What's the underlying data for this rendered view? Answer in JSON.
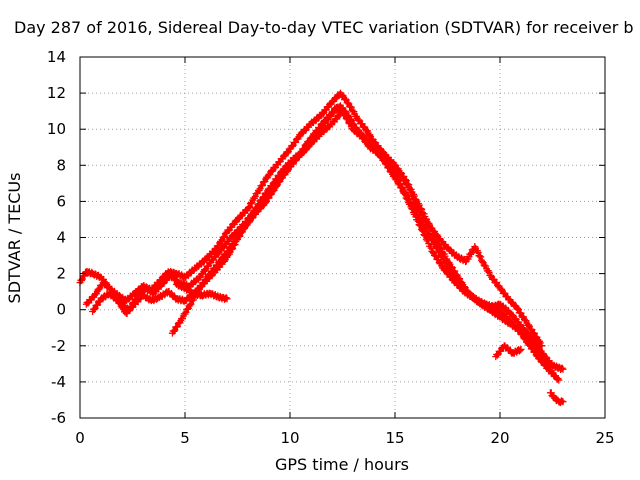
{
  "chart_data": {
    "type": "scatter",
    "title": "Day 287 of 2016, Sidereal Day-to-day VTEC variation (SDTVAR) for receiver b",
    "xlabel": "GPS time / hours",
    "ylabel": "SDTVAR / TECUs",
    "xlim": [
      0,
      25
    ],
    "ylim": [
      -6,
      14
    ],
    "xticks": [
      "0",
      "5",
      "10",
      "15",
      "20",
      "25"
    ],
    "yticks": [
      "-6",
      "-4",
      "-2",
      "0",
      "2",
      "4",
      "6",
      "8",
      "10",
      "12",
      "14"
    ],
    "grid": true,
    "marker": "plus",
    "color": "#ff0000",
    "series": [
      {
        "x": [
          0.0,
          0.3,
          0.6,
          1.0,
          1.4,
          1.8,
          2.2,
          2.6,
          3.0,
          3.4,
          3.8,
          4.2,
          4.6,
          5.0,
          5.5,
          6.0,
          6.5,
          7.0,
          7.5,
          8.0,
          8.5,
          9.0,
          9.5,
          10.0,
          10.5,
          11.0,
          11.5,
          12.0,
          12.4,
          12.8,
          13.2,
          13.6,
          14.0,
          14.5,
          15.0,
          15.5,
          16.0,
          16.5,
          17.0,
          17.5,
          18.0,
          18.5,
          19.0,
          19.5,
          20.0,
          20.5,
          21.0,
          21.5,
          22.0,
          22.5,
          23.0
        ],
        "y": [
          1.5,
          2.1,
          2.0,
          1.8,
          1.2,
          0.8,
          0.5,
          0.9,
          1.3,
          1.1,
          1.6,
          2.1,
          2.0,
          1.8,
          2.3,
          2.8,
          3.4,
          4.3,
          5.0,
          5.6,
          6.6,
          7.5,
          8.2,
          8.9,
          9.7,
          10.3,
          10.8,
          11.5,
          12.0,
          11.4,
          10.6,
          10.0,
          9.3,
          8.6,
          8.0,
          7.2,
          6.1,
          5.0,
          3.8,
          2.7,
          1.8,
          0.9,
          0.4,
          0.1,
          0.3,
          -0.2,
          -0.9,
          -1.6,
          -2.4,
          -3.1,
          -3.3
        ]
      },
      {
        "x": [
          0.3,
          0.7,
          1.1,
          1.5,
          1.9,
          2.3,
          2.7,
          3.1,
          3.5,
          3.9,
          4.3,
          4.7,
          5.2,
          5.7,
          6.2,
          6.7,
          7.2,
          7.7,
          8.2,
          8.7,
          9.2,
          9.7,
          10.2,
          10.7,
          11.2,
          11.7,
          12.2,
          12.6,
          13.0,
          13.4,
          13.8,
          14.3,
          14.8,
          15.3,
          15.8,
          16.3,
          16.8,
          17.3,
          17.8,
          18.3,
          18.8,
          19.3,
          19.8,
          20.3,
          20.8,
          21.3,
          21.8,
          22.3,
          22.8
        ],
        "y": [
          0.3,
          0.8,
          1.5,
          1.1,
          0.4,
          0.0,
          0.6,
          1.2,
          0.9,
          1.4,
          1.9,
          1.5,
          1.3,
          1.8,
          2.6,
          3.3,
          4.0,
          4.6,
          5.3,
          6.2,
          7.0,
          7.8,
          8.4,
          8.8,
          9.6,
          10.4,
          11.2,
          10.8,
          10.0,
          9.6,
          9.0,
          8.6,
          7.8,
          6.8,
          5.6,
          4.4,
          3.2,
          2.3,
          1.6,
          1.0,
          0.6,
          0.3,
          0.1,
          -0.4,
          -1.0,
          -1.8,
          -2.6,
          -3.3,
          -3.9
        ]
      },
      {
        "x": [
          0.6,
          1.0,
          1.4,
          1.8,
          2.2,
          2.6,
          3.0,
          3.4,
          3.8,
          4.2,
          4.6,
          5.0,
          5.5,
          6.0,
          6.5,
          7.0,
          7.5,
          8.0,
          8.5,
          9.0,
          9.5,
          10.0,
          10.5,
          11.0,
          11.5,
          12.0,
          12.5,
          13.0,
          13.5,
          14.0,
          14.5,
          15.0,
          15.5,
          16.0,
          16.5,
          17.0,
          17.5,
          18.0,
          18.5,
          19.0,
          19.5,
          20.0,
          20.5,
          21.0,
          21.5,
          22.0,
          22.5
        ],
        "y": [
          -0.1,
          0.6,
          0.9,
          0.5,
          -0.2,
          0.3,
          0.8,
          0.5,
          0.7,
          1.0,
          0.6,
          0.5,
          1.0,
          1.6,
          2.2,
          2.9,
          3.9,
          4.9,
          5.6,
          6.3,
          7.2,
          8.0,
          8.6,
          9.2,
          9.8,
          10.3,
          11.0,
          10.2,
          9.6,
          9.0,
          8.2,
          7.3,
          6.4,
          5.4,
          4.4,
          3.4,
          2.4,
          1.5,
          0.9,
          0.4,
          0.0,
          -0.4,
          -0.8,
          -1.2,
          -1.7,
          -2.5,
          -3.5
        ]
      },
      {
        "x": [
          4.4,
          4.8,
          5.2,
          5.6,
          6.0,
          6.4,
          6.8,
          7.2,
          7.6,
          8.0,
          8.4,
          8.8,
          9.2,
          9.6,
          10.0,
          10.4,
          10.8,
          11.2,
          11.6,
          12.0,
          12.4,
          12.8,
          13.2,
          13.6,
          14.0,
          14.4,
          14.8,
          15.2,
          15.6,
          16.0,
          16.4,
          16.8,
          17.2,
          17.6,
          18.0,
          18.4,
          18.8,
          19.2,
          19.6,
          20.0,
          20.4,
          20.8,
          21.2,
          21.6,
          22.0
        ],
        "y": [
          -1.3,
          -0.6,
          0.2,
          1.0,
          1.7,
          2.3,
          2.9,
          3.5,
          4.2,
          4.8,
          5.4,
          5.9,
          6.6,
          7.3,
          7.9,
          8.5,
          9.2,
          9.8,
          10.4,
          10.9,
          11.3,
          10.7,
          9.9,
          9.4,
          8.9,
          8.4,
          7.9,
          7.5,
          6.9,
          5.8,
          5.0,
          4.4,
          3.8,
          3.3,
          2.9,
          2.7,
          3.5,
          2.6,
          1.8,
          1.2,
          0.6,
          0.1,
          -0.6,
          -1.3,
          -2.0
        ]
      },
      {
        "x": [
          4.6,
          5.0,
          5.4,
          5.8,
          6.2,
          6.6,
          7.0
        ],
        "y": [
          1.4,
          1.2,
          0.9,
          0.8,
          0.9,
          0.7,
          0.6
        ]
      },
      {
        "x": [
          19.8,
          20.2,
          20.6,
          21.0
        ],
        "y": [
          -2.6,
          -2.0,
          -2.4,
          -2.2
        ]
      },
      {
        "x": [
          22.4,
          22.6,
          22.8,
          23.0
        ],
        "y": [
          -4.6,
          -4.9,
          -5.1,
          -5.1
        ]
      }
    ]
  }
}
